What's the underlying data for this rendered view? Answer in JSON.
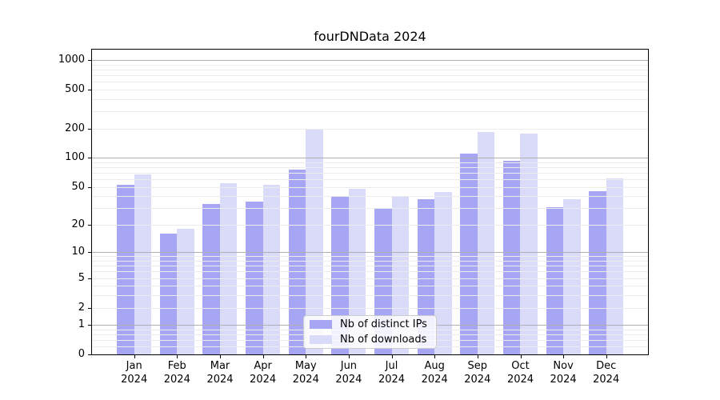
{
  "chart_data": {
    "type": "bar",
    "title": "fourDNData 2024",
    "categories": [
      "Jan",
      "Feb",
      "Mar",
      "Apr",
      "May",
      "Jun",
      "Jul",
      "Aug",
      "Sep",
      "Oct",
      "Nov",
      "Dec"
    ],
    "year_label": "2024",
    "series": [
      {
        "name": "Nb of distinct IPs",
        "color": "#a6a6f5",
        "values": [
          53,
          16,
          33,
          35,
          76,
          40,
          30,
          37,
          110,
          93,
          31,
          45
        ]
      },
      {
        "name": "Nb of downloads",
        "color": "#dadaf9",
        "values": [
          68,
          18,
          55,
          53,
          197,
          48,
          40,
          44,
          186,
          178,
          37,
          62
        ]
      }
    ],
    "yscale": "log1p",
    "yticks": [
      0,
      1,
      2,
      5,
      10,
      20,
      50,
      100,
      200,
      500,
      1000
    ],
    "ylim": [
      0,
      1283
    ],
    "grid": "horizontal major+minor, drawn above bars",
    "legend_position": "lower center"
  },
  "style_colors": {
    "major_grid": "#b0b0b0",
    "minor_grid": "#ececec",
    "spine": "#000000",
    "text": "#000000"
  }
}
